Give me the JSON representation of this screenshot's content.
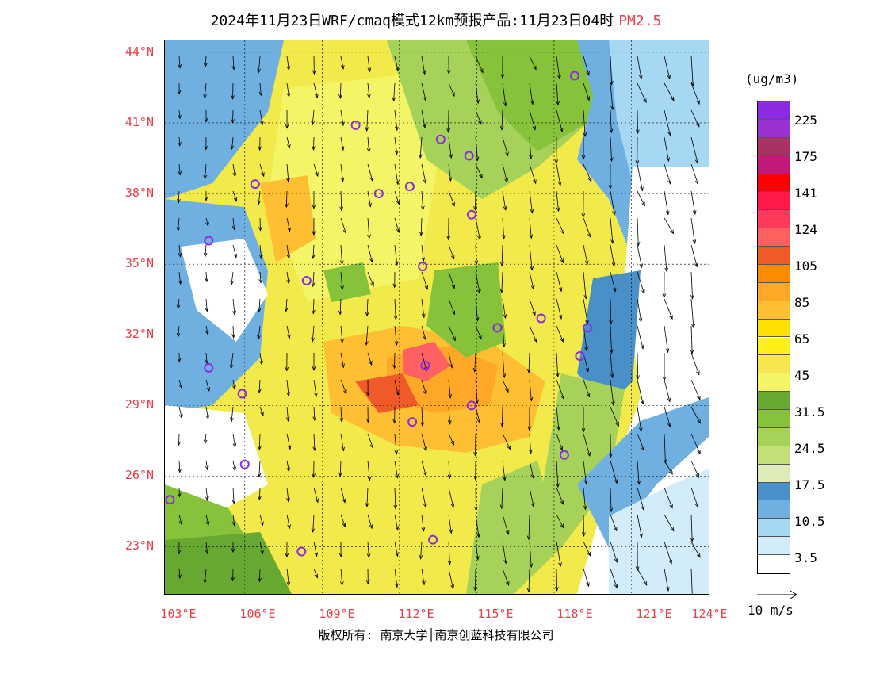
{
  "title": {
    "main": "2024年11月23日WRF/cmaq模式12km预报产品:11月23日04时",
    "pollutant": "PM2.5"
  },
  "colors": {
    "accent_red": "#e8404a",
    "ocean": "#ffffff",
    "land_base": "#f2e94a"
  },
  "map": {
    "lat_labels": [
      "44°N",
      "41°N",
      "38°N",
      "35°N",
      "32°N",
      "29°N",
      "26°N",
      "23°N"
    ],
    "lon_labels": [
      "103°E",
      "106°E",
      "109°E",
      "112°E",
      "115°E",
      "118°E",
      "121°E",
      "124°E"
    ],
    "lat_range": [
      21,
      44.5
    ],
    "lon_range": [
      102.9,
      124.0
    ],
    "station_marker": "purple-circle",
    "stations": [
      {
        "lon": 118.8,
        "lat": 43.0
      },
      {
        "lon": 110.3,
        "lat": 40.9
      },
      {
        "lon": 113.6,
        "lat": 40.3
      },
      {
        "lon": 114.7,
        "lat": 39.6
      },
      {
        "lon": 106.4,
        "lat": 38.4
      },
      {
        "lon": 111.2,
        "lat": 38.0
      },
      {
        "lon": 112.4,
        "lat": 38.3
      },
      {
        "lon": 114.8,
        "lat": 37.1
      },
      {
        "lon": 104.6,
        "lat": 36.0
      },
      {
        "lon": 112.9,
        "lat": 34.9
      },
      {
        "lon": 108.4,
        "lat": 34.3
      },
      {
        "lon": 117.5,
        "lat": 32.7
      },
      {
        "lon": 115.8,
        "lat": 32.3
      },
      {
        "lon": 119.3,
        "lat": 32.3
      },
      {
        "lon": 119.0,
        "lat": 31.1
      },
      {
        "lon": 104.6,
        "lat": 30.6
      },
      {
        "lon": 113.0,
        "lat": 30.7
      },
      {
        "lon": 105.9,
        "lat": 29.5
      },
      {
        "lon": 114.8,
        "lat": 29.0
      },
      {
        "lon": 112.5,
        "lat": 28.3
      },
      {
        "lon": 106.0,
        "lat": 26.5
      },
      {
        "lon": 118.4,
        "lat": 26.9
      },
      {
        "lon": 103.1,
        "lat": 25.0
      },
      {
        "lon": 108.2,
        "lat": 22.8
      },
      {
        "lon": 113.3,
        "lat": 23.3
      }
    ]
  },
  "legend": {
    "unit": "(ug/m3)",
    "tick_labels": [
      "225",
      "175",
      "141",
      "124",
      "105",
      "85",
      "65",
      "45",
      "31.5",
      "24.5",
      "17.5",
      "10.5",
      "3.5"
    ],
    "swatches": [
      "#8a2be2",
      "#9b30d0",
      "#a83264",
      "#c2187a",
      "#ff0000",
      "#ff1a4a",
      "#ff3b5c",
      "#ff6060",
      "#f05a28",
      "#ff8c00",
      "#ffa726",
      "#ffbf33",
      "#ffe000",
      "#fff01a",
      "#f7e650",
      "#f4f566",
      "#66a832",
      "#86c23a",
      "#a6d25a",
      "#c2e07a",
      "#dcebb8",
      "#4a90c8",
      "#6fb0e0",
      "#a6d8f4",
      "#d2ecfa",
      "#ffffff"
    ]
  },
  "wind": {
    "reference_label": "10 m/s",
    "reference_speed": 10
  },
  "footer": {
    "copyright": "版权所有: 南京大学│南京创蓝科技有限公司"
  }
}
